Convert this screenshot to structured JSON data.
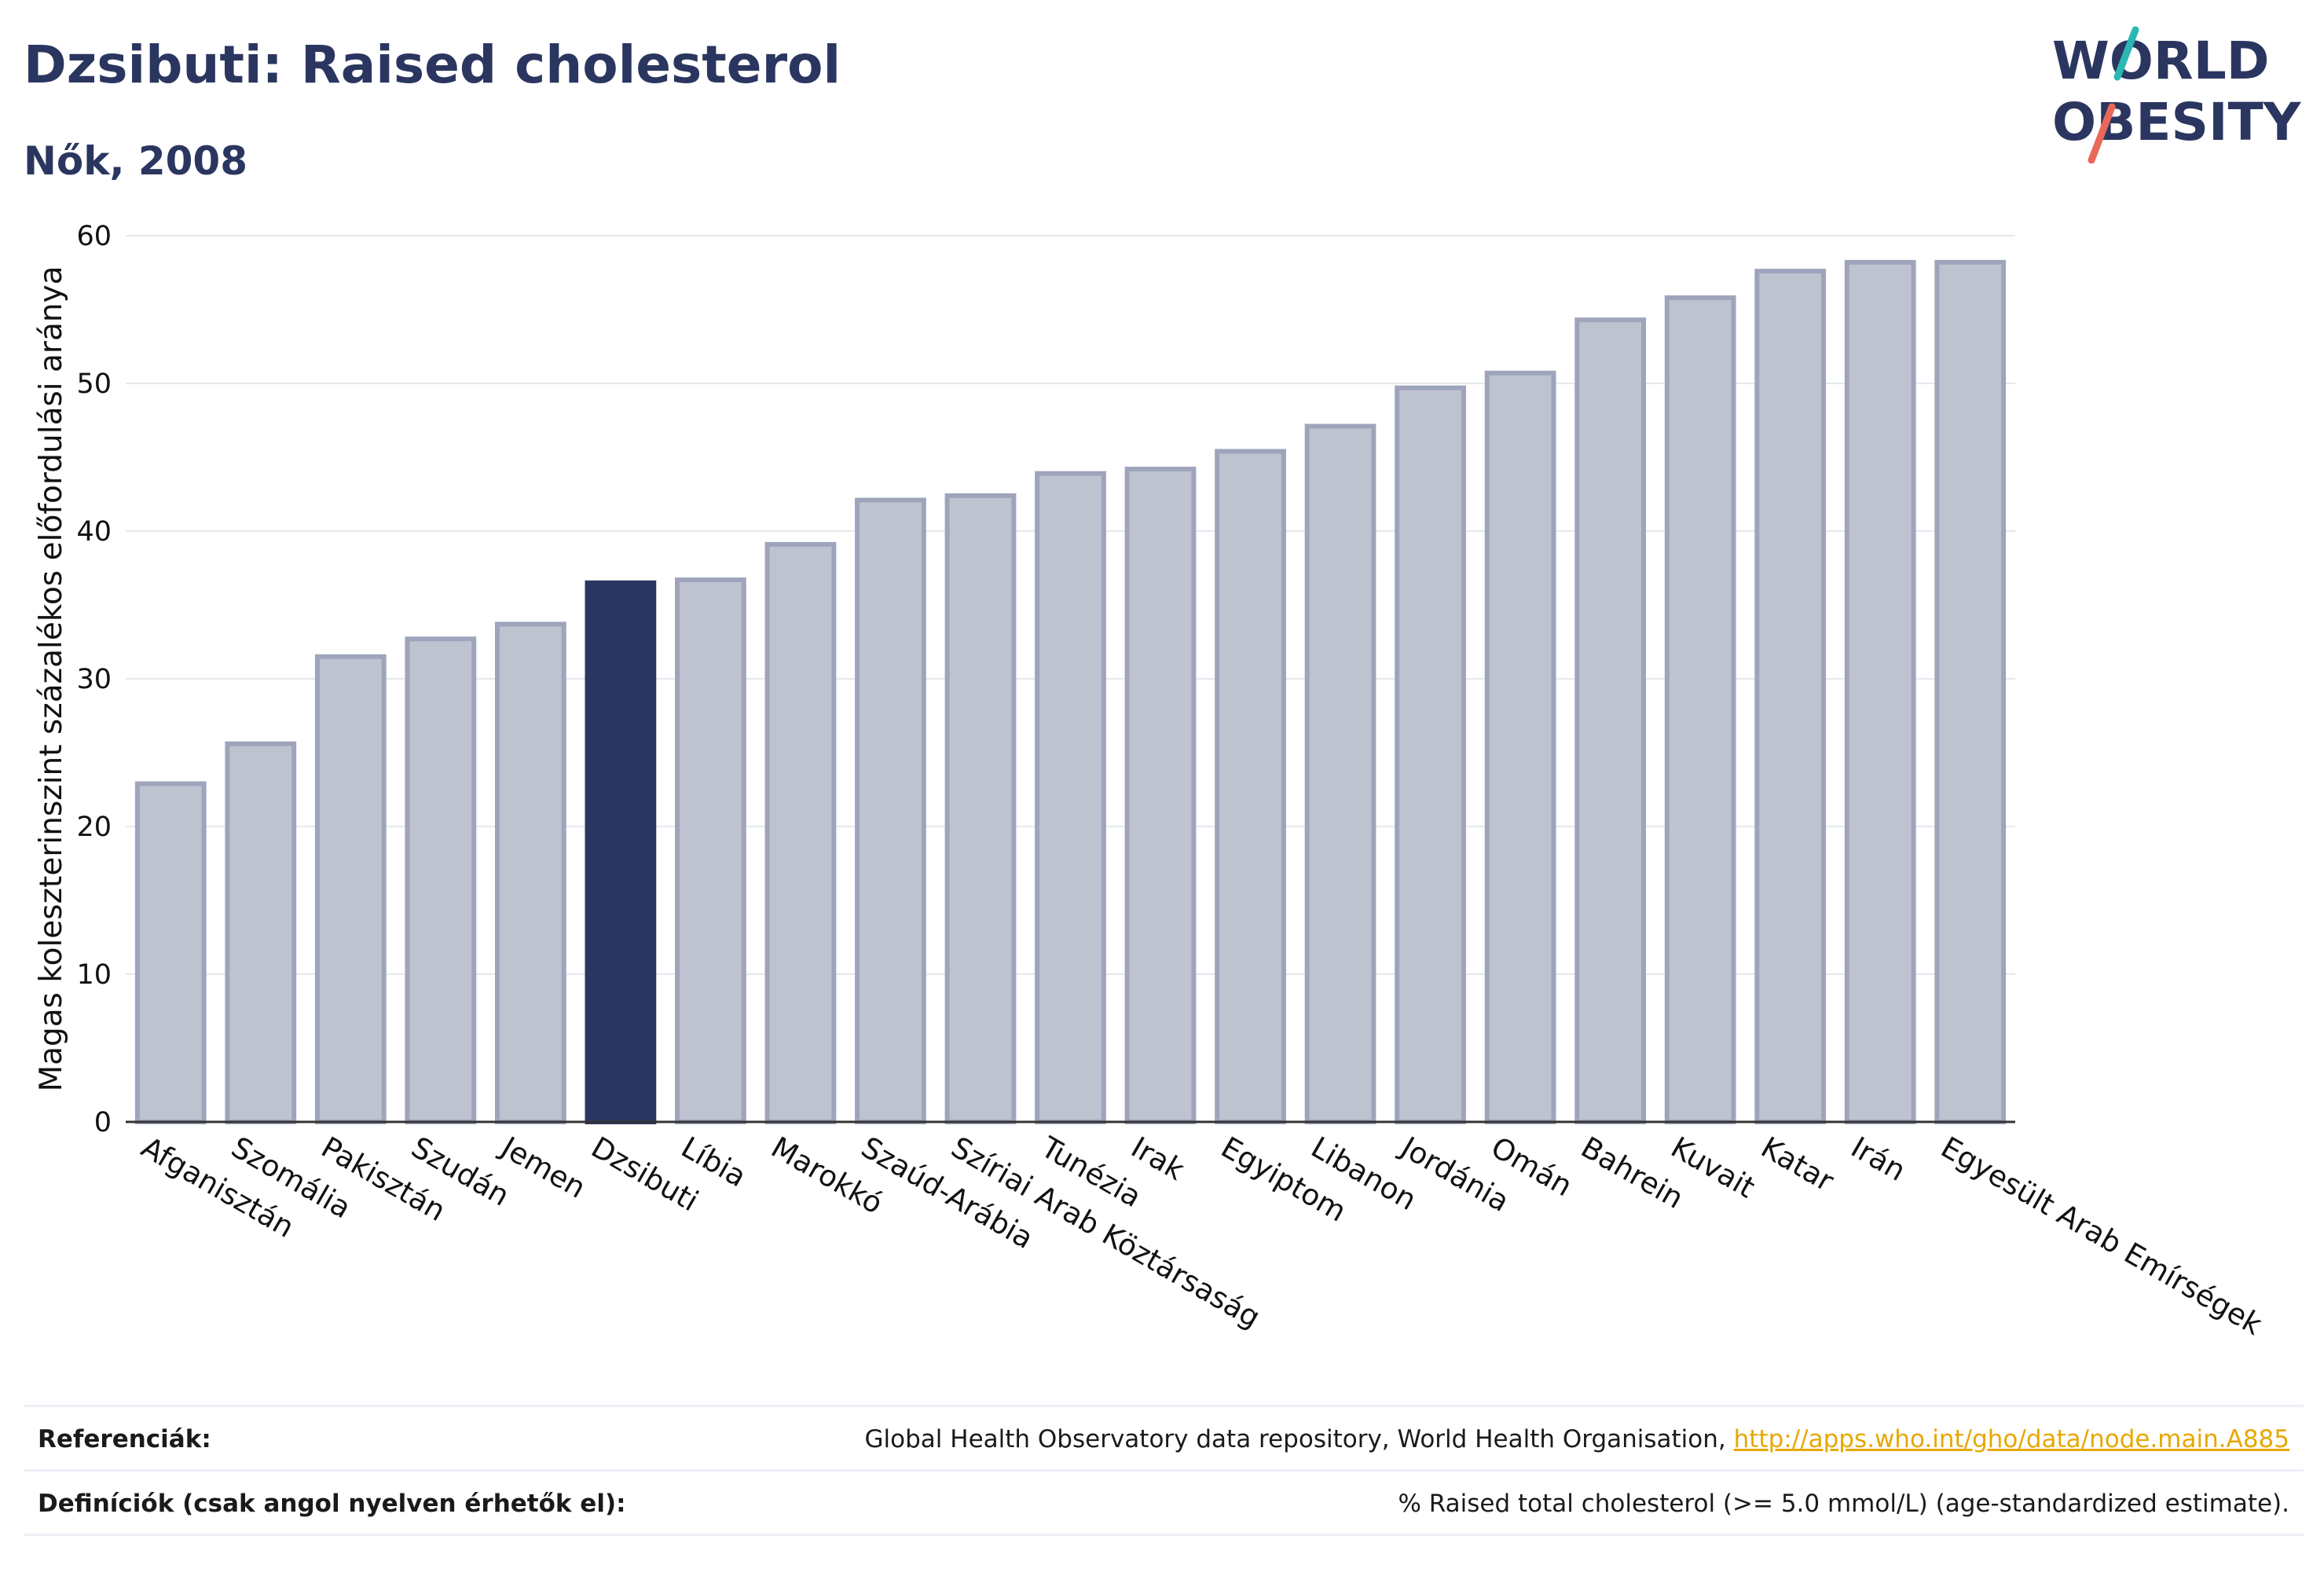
{
  "header": {
    "title": "Dzsibuti: Raised cholesterol",
    "subtitle": "Nők, 2008"
  },
  "logo": {
    "line1": "WORLD",
    "line2": "OBESITY",
    "colors": {
      "navy": "#2b3660",
      "teal": "#2bb7b3",
      "coral": "#e8685a"
    }
  },
  "chart_data": {
    "type": "bar",
    "title": "Dzsibuti: Raised cholesterol",
    "subtitle": "Nők, 2008",
    "ylabel": "Magas koleszterinszint százalékos előfordulási aránya",
    "xlabel": "",
    "ylim": [
      0,
      60
    ],
    "yticks": [
      0,
      10,
      20,
      30,
      40,
      50,
      60
    ],
    "grid": true,
    "highlight": "Dzsibuti",
    "colors": {
      "bar": "#bfc3d0",
      "bar_edge": "#9ea4bb",
      "highlight": "#2b3660",
      "grid": "#e6e8ee",
      "axis": "#333333"
    },
    "categories": [
      "Afganisztán",
      "Szomália",
      "Pakisztán",
      "Szudán",
      "Jemen",
      "Dzsibuti",
      "Líbia",
      "Marokkó",
      "Szaúd-Arábia",
      "Szíriai Arab Köztársaság",
      "Tunézia",
      "Irak",
      "Egyiptom",
      "Libanon",
      "Jordánia",
      "Omán",
      "Bahrein",
      "Kuvait",
      "Katar",
      "Irán",
      "Egyesült Arab Emírségek"
    ],
    "values": [
      22.9,
      25.6,
      31.5,
      32.7,
      33.7,
      36.5,
      36.7,
      39.1,
      42.1,
      42.4,
      43.9,
      44.2,
      45.4,
      47.1,
      49.7,
      50.7,
      54.3,
      55.8,
      57.6,
      58.2,
      58.2
    ]
  },
  "footer": {
    "references_label": "Referenciák:",
    "references_text": "Global Health Observatory data repository, World Health Organisation, ",
    "references_link": "http://apps.who.int/gho/data/node.main.A885",
    "definitions_label": "Definíciók (csak angol nyelven érhetők el):",
    "definitions_text": "% Raised total cholesterol (>= 5.0 mmol/L) (age-standardized estimate)."
  }
}
